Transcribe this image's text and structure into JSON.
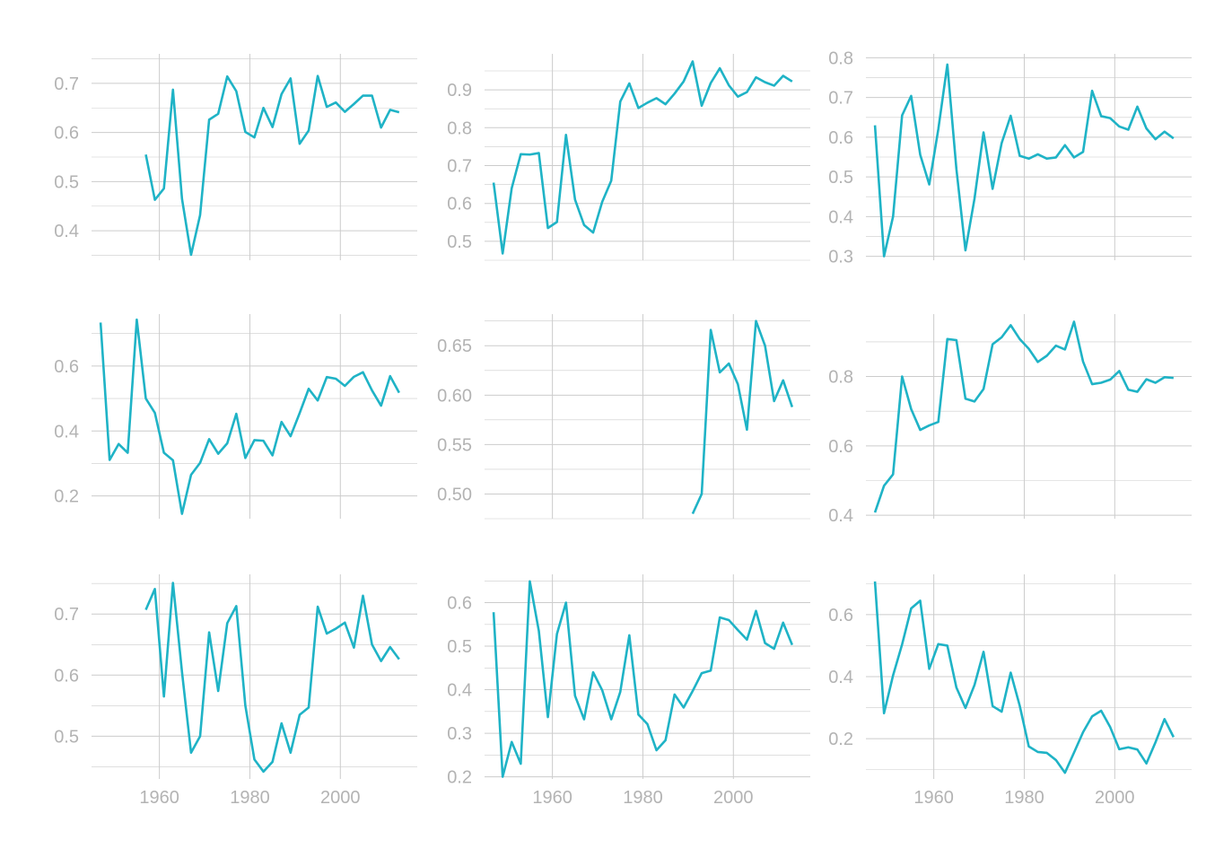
{
  "colors": {
    "line": "#1fb3c6",
    "grid": "#cccccc",
    "tick_text": "#b3b3b3",
    "background": "#ffffff"
  },
  "chart_data": [
    {
      "type": "line",
      "panel": "row-1-col-1",
      "x_axis_labels_shown": false,
      "ylim": [
        0.34,
        0.76
      ],
      "y_ticks": [
        0.4,
        0.5,
        0.6,
        0.7
      ],
      "y_tick_labels": [
        "0.4",
        "0.5",
        "0.6",
        "0.7"
      ],
      "xlim": [
        1945,
        2017
      ],
      "x_ticks": [
        1960,
        1980,
        2000
      ],
      "x": [
        1957,
        1959,
        1961,
        1963,
        1965,
        1967,
        1969,
        1971,
        1973,
        1975,
        1977,
        1979,
        1981,
        1983,
        1985,
        1987,
        1989,
        1991,
        1993,
        1995,
        1997,
        1999,
        2001,
        2003,
        2005,
        2007,
        2009,
        2011,
        2013
      ],
      "y": [
        0.555,
        0.463,
        0.486,
        0.687,
        0.465,
        0.351,
        0.432,
        0.626,
        0.638,
        0.714,
        0.684,
        0.601,
        0.59,
        0.65,
        0.611,
        0.678,
        0.71,
        0.577,
        0.604,
        0.715,
        0.652,
        0.661,
        0.642,
        0.658,
        0.675,
        0.675,
        0.61,
        0.646,
        0.641
      ]
    },
    {
      "type": "line",
      "panel": "row-1-col-2",
      "x_axis_labels_shown": false,
      "ylim": [
        0.45,
        0.995
      ],
      "y_ticks": [
        0.5,
        0.6,
        0.7,
        0.8,
        0.9
      ],
      "y_tick_labels": [
        "0.5",
        "0.6",
        "0.7",
        "0.8",
        "0.9"
      ],
      "xlim": [
        1945,
        2017
      ],
      "x_ticks": [
        1960,
        1980,
        2000
      ],
      "x": [
        1947,
        1949,
        1951,
        1953,
        1955,
        1957,
        1959,
        1961,
        1963,
        1965,
        1967,
        1969,
        1971,
        1973,
        1975,
        1977,
        1979,
        1981,
        1983,
        1985,
        1987,
        1989,
        1991,
        1993,
        1995,
        1997,
        1999,
        2001,
        2003,
        2005,
        2007,
        2009,
        2011,
        2013
      ],
      "y": [
        0.655,
        0.468,
        0.64,
        0.73,
        0.729,
        0.733,
        0.535,
        0.551,
        0.781,
        0.61,
        0.543,
        0.523,
        0.604,
        0.66,
        0.869,
        0.917,
        0.852,
        0.866,
        0.878,
        0.862,
        0.89,
        0.922,
        0.975,
        0.858,
        0.918,
        0.957,
        0.912,
        0.882,
        0.894,
        0.933,
        0.92,
        0.911,
        0.937,
        0.922
      ]
    },
    {
      "type": "line",
      "panel": "row-1-col-3",
      "x_axis_labels_shown": false,
      "ylim": [
        0.29,
        0.81
      ],
      "y_ticks": [
        0.3,
        0.4,
        0.5,
        0.6,
        0.7,
        0.8
      ],
      "y_tick_labels": [
        "0.3",
        "0.4",
        "0.5",
        "0.6",
        "0.7",
        "0.8"
      ],
      "xlim": [
        1945,
        2017
      ],
      "x_ticks": [
        1960,
        1980,
        2000
      ],
      "x": [
        1947,
        1949,
        1951,
        1953,
        1955,
        1957,
        1959,
        1961,
        1963,
        1965,
        1967,
        1969,
        1971,
        1973,
        1975,
        1977,
        1979,
        1981,
        1983,
        1985,
        1987,
        1989,
        1991,
        1993,
        1995,
        1997,
        1999,
        2001,
        2003,
        2005,
        2007,
        2009,
        2011,
        2013
      ],
      "y": [
        0.63,
        0.3,
        0.4,
        0.655,
        0.704,
        0.556,
        0.481,
        0.62,
        0.783,
        0.52,
        0.315,
        0.445,
        0.612,
        0.47,
        0.585,
        0.654,
        0.553,
        0.546,
        0.557,
        0.546,
        0.549,
        0.58,
        0.549,
        0.563,
        0.717,
        0.653,
        0.648,
        0.627,
        0.619,
        0.677,
        0.622,
        0.595,
        0.614,
        0.597
      ]
    },
    {
      "type": "line",
      "panel": "row-2-col-1",
      "x_axis_labels_shown": false,
      "ylim": [
        0.13,
        0.76
      ],
      "y_ticks": [
        0.2,
        0.4,
        0.6
      ],
      "y_tick_labels": [
        "0.2",
        "0.4",
        "0.6"
      ],
      "xlim": [
        1945,
        2017
      ],
      "x_ticks": [
        1960,
        1980,
        2000
      ],
      "x": [
        1947,
        1949,
        1951,
        1953,
        1955,
        1957,
        1959,
        1961,
        1963,
        1965,
        1967,
        1969,
        1971,
        1973,
        1975,
        1977,
        1979,
        1981,
        1983,
        1985,
        1987,
        1989,
        1991,
        1993,
        1995,
        1997,
        1999,
        2001,
        2003,
        2005,
        2007,
        2009,
        2011,
        2013
      ],
      "y": [
        0.734,
        0.311,
        0.36,
        0.333,
        0.743,
        0.5,
        0.456,
        0.333,
        0.31,
        0.145,
        0.265,
        0.302,
        0.375,
        0.33,
        0.362,
        0.453,
        0.317,
        0.372,
        0.37,
        0.325,
        0.428,
        0.384,
        0.455,
        0.53,
        0.494,
        0.566,
        0.561,
        0.539,
        0.567,
        0.581,
        0.525,
        0.478,
        0.569,
        0.518
      ]
    },
    {
      "type": "line",
      "panel": "row-2-col-2",
      "x_axis_labels_shown": false,
      "ylim": [
        0.475,
        0.682
      ],
      "y_ticks": [
        0.5,
        0.55,
        0.6,
        0.65
      ],
      "y_tick_labels": [
        "0.50",
        "0.55",
        "0.60",
        "0.65"
      ],
      "xlim": [
        1945,
        2017
      ],
      "x_ticks": [
        1960,
        1980,
        2000
      ],
      "x": [
        1991,
        1993,
        1995,
        1997,
        1999,
        2001,
        2003,
        2005,
        2007,
        2009,
        2011,
        2013
      ],
      "y": [
        0.48,
        0.5,
        0.666,
        0.623,
        0.632,
        0.611,
        0.565,
        0.675,
        0.65,
        0.594,
        0.615,
        0.588
      ]
    },
    {
      "type": "line",
      "panel": "row-2-col-3",
      "x_axis_labels_shown": false,
      "ylim": [
        0.39,
        0.98
      ],
      "y_ticks": [
        0.4,
        0.6,
        0.8
      ],
      "y_tick_labels": [
        "0.4",
        "0.6",
        "0.8"
      ],
      "xlim": [
        1945,
        2017
      ],
      "x_ticks": [
        1960,
        1980,
        2000
      ],
      "x": [
        1947,
        1949,
        1951,
        1953,
        1955,
        1957,
        1959,
        1961,
        1963,
        1965,
        1967,
        1969,
        1971,
        1973,
        1975,
        1977,
        1979,
        1981,
        1983,
        1985,
        1987,
        1989,
        1991,
        1993,
        1995,
        1997,
        1999,
        2001,
        2003,
        2005,
        2007,
        2009,
        2011,
        2013
      ],
      "y": [
        0.408,
        0.485,
        0.518,
        0.8,
        0.706,
        0.646,
        0.659,
        0.669,
        0.908,
        0.905,
        0.736,
        0.728,
        0.764,
        0.893,
        0.913,
        0.948,
        0.908,
        0.88,
        0.842,
        0.86,
        0.889,
        0.878,
        0.958,
        0.843,
        0.778,
        0.782,
        0.791,
        0.816,
        0.762,
        0.756,
        0.792,
        0.782,
        0.798,
        0.796
      ]
    },
    {
      "type": "line",
      "panel": "row-3-col-1",
      "x_axis_labels_shown": true,
      "ylim": [
        0.43,
        0.765
      ],
      "y_ticks": [
        0.5,
        0.6,
        0.7
      ],
      "y_tick_labels": [
        "0.5",
        "0.6",
        "0.7"
      ],
      "xlim": [
        1945,
        2017
      ],
      "x_ticks": [
        1960,
        1980,
        2000
      ],
      "x_tick_labels": [
        "1960",
        "1980",
        "2000"
      ],
      "x": [
        1957,
        1959,
        1961,
        1963,
        1965,
        1967,
        1969,
        1971,
        1973,
        1975,
        1977,
        1979,
        1981,
        1983,
        1985,
        1987,
        1989,
        1991,
        1993,
        1995,
        1997,
        1999,
        2001,
        2003,
        2005,
        2007,
        2009,
        2011,
        2013
      ],
      "y": [
        0.707,
        0.741,
        0.565,
        0.751,
        0.605,
        0.473,
        0.5,
        0.67,
        0.574,
        0.685,
        0.713,
        0.55,
        0.462,
        0.442,
        0.458,
        0.521,
        0.473,
        0.535,
        0.547,
        0.712,
        0.668,
        0.676,
        0.686,
        0.645,
        0.73,
        0.65,
        0.623,
        0.646,
        0.626
      ]
    },
    {
      "type": "line",
      "panel": "row-3-col-2",
      "x_axis_labels_shown": true,
      "ylim": [
        0.195,
        0.665
      ],
      "y_ticks": [
        0.2,
        0.3,
        0.4,
        0.5,
        0.6
      ],
      "y_tick_labels": [
        "0.2",
        "0.3",
        "0.4",
        "0.5",
        "0.6"
      ],
      "xlim": [
        1945,
        2017
      ],
      "x_ticks": [
        1960,
        1980,
        2000
      ],
      "x_tick_labels": [
        "1960",
        "1980",
        "2000"
      ],
      "x": [
        1947,
        1949,
        1951,
        1953,
        1955,
        1957,
        1959,
        1961,
        1963,
        1965,
        1967,
        1969,
        1971,
        1973,
        1975,
        1977,
        1979,
        1981,
        1983,
        1985,
        1987,
        1989,
        1991,
        1993,
        1995,
        1997,
        1999,
        2001,
        2003,
        2005,
        2007,
        2009,
        2011,
        2013
      ],
      "y": [
        0.578,
        0.2,
        0.28,
        0.23,
        0.649,
        0.535,
        0.337,
        0.528,
        0.6,
        0.386,
        0.332,
        0.44,
        0.399,
        0.332,
        0.395,
        0.525,
        0.343,
        0.321,
        0.261,
        0.284,
        0.389,
        0.359,
        0.397,
        0.438,
        0.444,
        0.566,
        0.56,
        0.537,
        0.515,
        0.581,
        0.507,
        0.494,
        0.554,
        0.503
      ]
    },
    {
      "type": "line",
      "panel": "row-3-col-3",
      "x_axis_labels_shown": true,
      "ylim": [
        0.07,
        0.73
      ],
      "y_ticks": [
        0.2,
        0.4,
        0.6
      ],
      "y_tick_labels": [
        "0.2",
        "0.4",
        "0.6"
      ],
      "xlim": [
        1945,
        2017
      ],
      "x_ticks": [
        1960,
        1980,
        2000
      ],
      "x_tick_labels": [
        "1960",
        "1980",
        "2000"
      ],
      "x": [
        1947,
        1949,
        1951,
        1953,
        1955,
        1957,
        1959,
        1961,
        1963,
        1965,
        1967,
        1969,
        1971,
        1973,
        1975,
        1977,
        1979,
        1981,
        1983,
        1985,
        1987,
        1989,
        1991,
        1993,
        1995,
        1997,
        1999,
        2001,
        2003,
        2005,
        2007,
        2009,
        2011,
        2013
      ],
      "y": [
        0.707,
        0.282,
        0.404,
        0.504,
        0.62,
        0.645,
        0.425,
        0.505,
        0.5,
        0.365,
        0.299,
        0.373,
        0.48,
        0.305,
        0.287,
        0.413,
        0.306,
        0.175,
        0.157,
        0.154,
        0.131,
        0.09,
        0.155,
        0.221,
        0.272,
        0.29,
        0.237,
        0.166,
        0.172,
        0.165,
        0.12,
        0.188,
        0.263,
        0.205
      ]
    }
  ]
}
